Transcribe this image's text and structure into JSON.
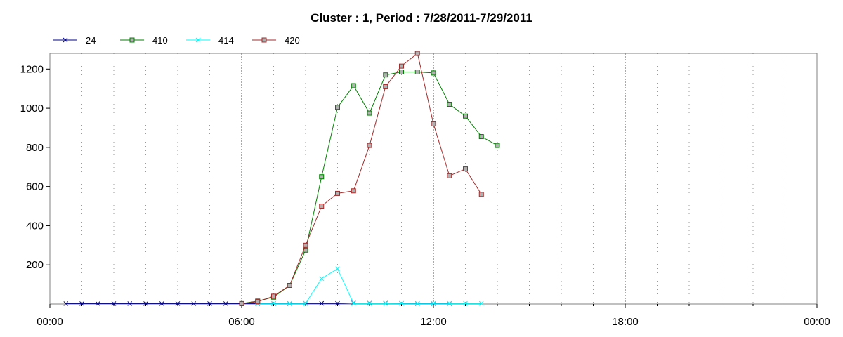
{
  "chart_data": {
    "type": "line",
    "title": "Cluster : 1, Period : 7/28/2011-7/29/2011",
    "xlabel": "",
    "ylabel": "",
    "x_ticks": [
      {
        "value": 0,
        "label": "00:00"
      },
      {
        "value": 6,
        "label": "06:00"
      },
      {
        "value": 12,
        "label": "12:00"
      },
      {
        "value": 18,
        "label": "18:00"
      },
      {
        "value": 24,
        "label": "00:00"
      }
    ],
    "y_ticks": [
      200,
      400,
      600,
      800,
      1000,
      1200
    ],
    "xlim": [
      0,
      24
    ],
    "ylim": [
      0,
      1280
    ],
    "grid": "dotted-vertical",
    "legend_position": "top-left",
    "series": [
      {
        "name": "24",
        "color": "#00008b",
        "marker": "x",
        "points": [
          [
            0.5,
            2
          ],
          [
            1,
            2
          ],
          [
            1.5,
            2
          ],
          [
            2,
            2
          ],
          [
            2.5,
            2
          ],
          [
            3,
            2
          ],
          [
            3.5,
            2
          ],
          [
            4,
            2
          ],
          [
            4.5,
            2
          ],
          [
            5,
            2
          ],
          [
            5.5,
            2
          ],
          [
            6,
            2
          ],
          [
            6.5,
            2
          ],
          [
            7,
            2
          ],
          [
            7.5,
            2
          ],
          [
            8,
            3
          ],
          [
            8.5,
            3
          ],
          [
            9,
            3
          ],
          [
            9.5,
            5
          ],
          [
            10,
            4
          ],
          [
            10.5,
            4
          ],
          [
            11,
            3
          ],
          [
            11.5,
            2
          ],
          [
            12,
            2
          ],
          [
            12.5,
            2
          ]
        ]
      },
      {
        "name": "410",
        "color": "#008000",
        "marker": "square",
        "points": [
          [
            6,
            2
          ],
          [
            6.5,
            15
          ],
          [
            7,
            35
          ],
          [
            7.5,
            95
          ],
          [
            8,
            275
          ],
          [
            8.5,
            650
          ],
          [
            9,
            1005
          ],
          [
            9.5,
            1115
          ],
          [
            10,
            975
          ],
          [
            10.5,
            1170
          ],
          [
            11,
            1185
          ],
          [
            11.5,
            1185
          ],
          [
            12,
            1180
          ],
          [
            12.5,
            1020
          ],
          [
            13,
            960
          ],
          [
            13.5,
            855
          ],
          [
            14,
            810
          ]
        ]
      },
      {
        "name": "414",
        "color": "#00ffff",
        "marker": "x",
        "points": [
          [
            6.5,
            3
          ],
          [
            7,
            3
          ],
          [
            7.5,
            3
          ],
          [
            8,
            3
          ],
          [
            8.5,
            130
          ],
          [
            9,
            180
          ],
          [
            9.5,
            3
          ],
          [
            10,
            3
          ],
          [
            10.5,
            3
          ],
          [
            11,
            3
          ],
          [
            11.5,
            3
          ],
          [
            12,
            3
          ],
          [
            12.5,
            3
          ],
          [
            13,
            3
          ],
          [
            13.5,
            3
          ]
        ]
      },
      {
        "name": "420",
        "color": "#a52a2a",
        "marker": "square",
        "points": [
          [
            6,
            2
          ],
          [
            6.5,
            12
          ],
          [
            7,
            40
          ],
          [
            7.5,
            95
          ],
          [
            8,
            300
          ],
          [
            8.5,
            500
          ],
          [
            9,
            565
          ],
          [
            9.5,
            578
          ],
          [
            10,
            810
          ],
          [
            10.5,
            1110
          ],
          [
            11,
            1215
          ],
          [
            11.5,
            1280
          ],
          [
            12,
            920
          ],
          [
            12.5,
            655
          ],
          [
            13,
            690
          ],
          [
            13.5,
            560
          ]
        ]
      }
    ]
  }
}
